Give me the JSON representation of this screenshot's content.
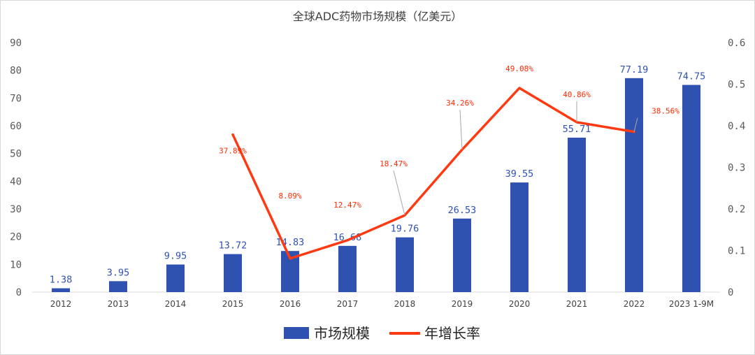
{
  "chart_data": {
    "type": "bar",
    "title": "全球ADC药物市场规模（亿美元）",
    "categories": [
      "2012",
      "2013",
      "2014",
      "2015",
      "2016",
      "2017",
      "2018",
      "2019",
      "2020",
      "2021",
      "2022",
      "2023 1-9M"
    ],
    "series": [
      {
        "name": "市场规模",
        "type": "bar",
        "axis": "left",
        "color": "#2f52b1",
        "values": [
          1.38,
          3.95,
          9.95,
          13.72,
          14.83,
          16.68,
          19.76,
          26.53,
          39.55,
          55.71,
          77.19,
          74.75
        ],
        "labels": [
          "1.38",
          "3.95",
          "9.95",
          "13.72",
          "14.83",
          "16.68",
          "19.76",
          "26.53",
          "39.55",
          "55.71",
          "77.19",
          "74.75"
        ]
      },
      {
        "name": "年增长率",
        "type": "line",
        "axis": "right",
        "color": "#ff3a12",
        "values": [
          null,
          null,
          null,
          0.3789,
          0.0809,
          0.1247,
          0.1847,
          0.3426,
          0.4908,
          0.4086,
          0.3856,
          null
        ],
        "labels": [
          null,
          null,
          null,
          "37.89%",
          "8.09%",
          "12.47%",
          "18.47%",
          "34.26%",
          "49.08%",
          "40.86%",
          "38.56%",
          null
        ]
      }
    ],
    "y_left": {
      "min": 0,
      "max": 90,
      "ticks": [
        "0",
        "10",
        "20",
        "30",
        "40",
        "50",
        "60",
        "70",
        "80",
        "90"
      ]
    },
    "y_right": {
      "min": 0,
      "max": 0.6,
      "ticks": [
        "0",
        "0.1",
        "0.2",
        "0.3",
        "0.4",
        "0.5",
        "0.6"
      ]
    },
    "grid": false,
    "legend": {
      "placement": "bottom",
      "entries": [
        "市场规模",
        "年增长率"
      ]
    }
  }
}
